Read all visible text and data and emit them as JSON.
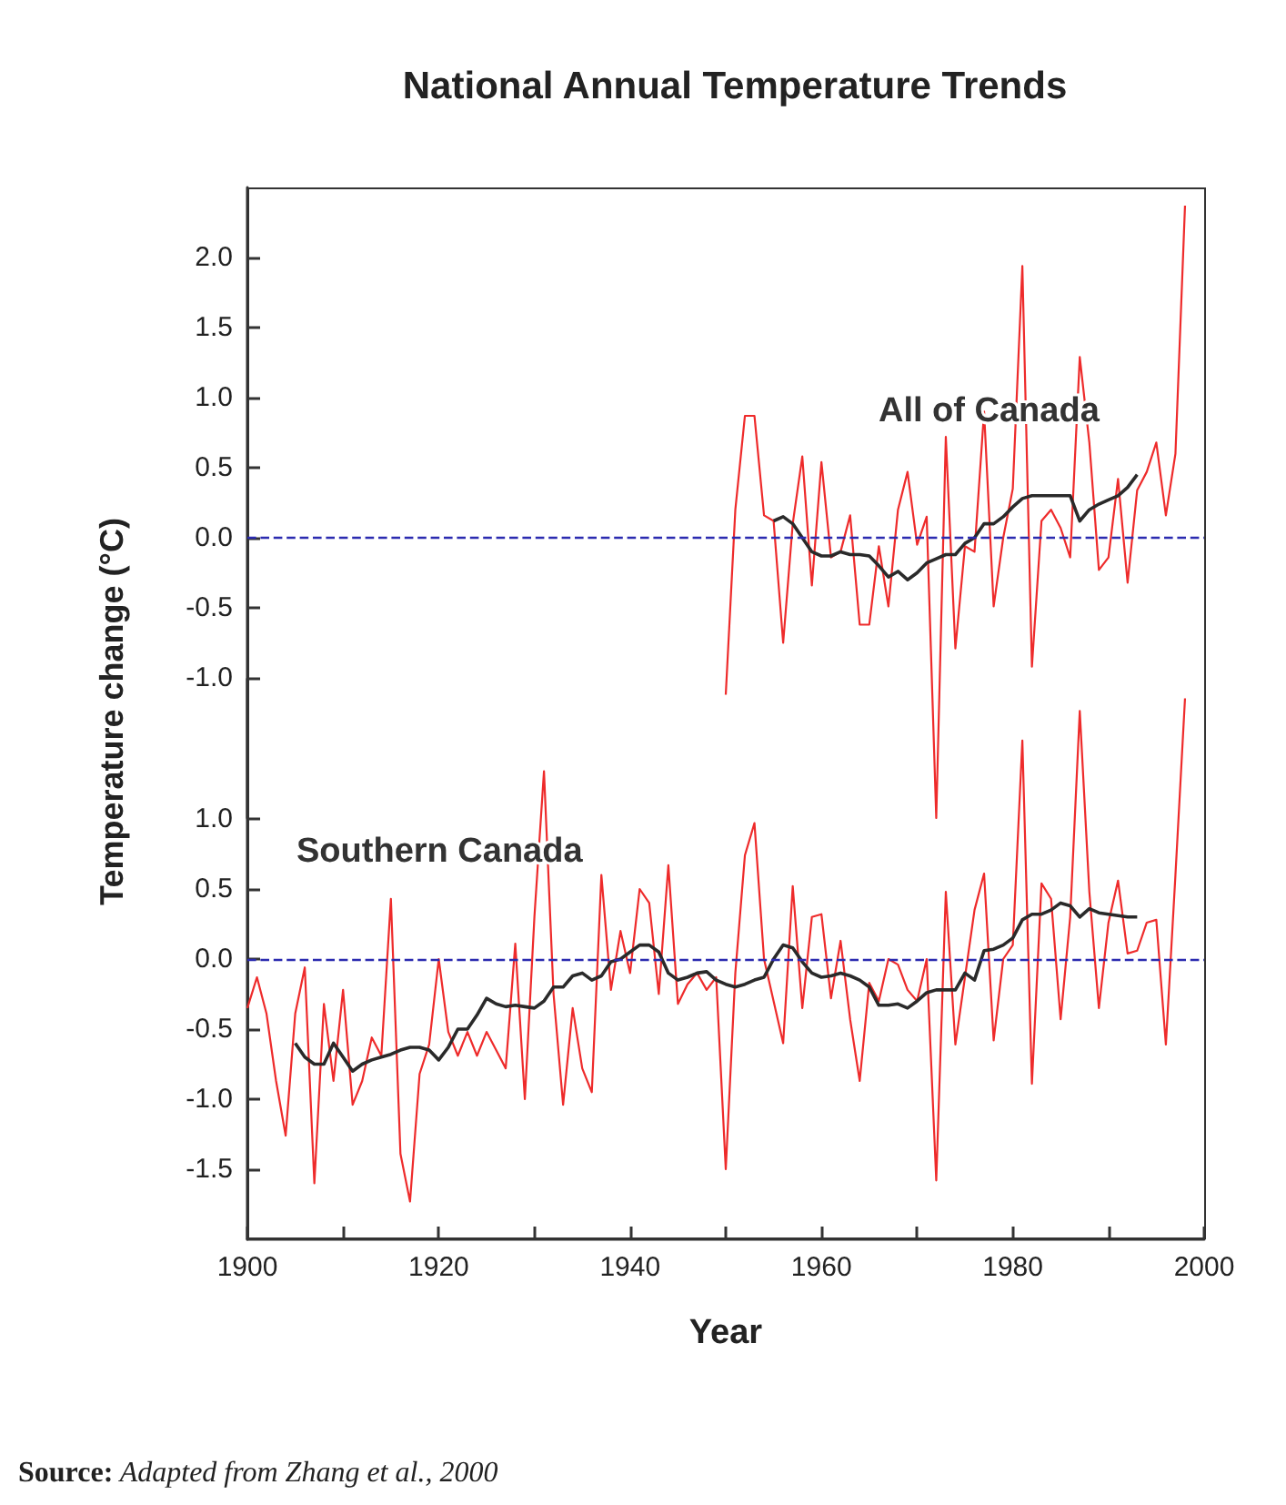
{
  "chart_data": [
    {
      "type": "line",
      "title": "National Annual Temperature Trends",
      "ylabel": "Temperature change (°C)",
      "tick_labels": "y",
      "marker": "none",
      "grid": false,
      "xlim": [
        1900,
        2000
      ],
      "ylim": [
        -2.0,
        2.5
      ],
      "yticks": [
        {
          "value": -1,
          "label": "-1.0"
        },
        {
          "value": -0.5,
          "label": "-0.5"
        },
        {
          "value": 0,
          "label": "0.0"
        },
        {
          "value": 0.5,
          "label": "0.5"
        },
        {
          "value": 1,
          "label": "1.0"
        },
        {
          "value": 1.5,
          "label": "1.5"
        },
        {
          "value": 2,
          "label": "2.0"
        }
      ],
      "ref_lines": [
        {
          "axis": "y",
          "value": 0,
          "color": "#2b2bb0",
          "line_style": "dashed"
        }
      ],
      "annotations": [
        "All of Canada"
      ],
      "series": [
        {
          "color": "#ee2b2b",
          "x": [
            1950,
            1951,
            1952,
            1953,
            1954,
            1955,
            1956,
            1957,
            1958,
            1959,
            1960,
            1961,
            1962,
            1963,
            1964,
            1965,
            1966,
            1967,
            1968,
            1969,
            1970,
            1971,
            1972,
            1973,
            1974,
            1975,
            1976,
            1977,
            1978,
            1979,
            1980,
            1981,
            1982,
            1983,
            1984,
            1985,
            1986,
            1987,
            1988,
            1989,
            1990,
            1991,
            1992,
            1993,
            1994,
            1995,
            1996,
            1997,
            1998
          ],
          "values": [
            -1.12,
            0.2,
            0.87,
            0.87,
            0.16,
            0.12,
            -0.75,
            0.1,
            0.58,
            -0.34,
            0.54,
            -0.14,
            -0.1,
            0.16,
            -0.62,
            -0.62,
            -0.06,
            -0.49,
            0.2,
            0.47,
            -0.05,
            0.15,
            -2.0,
            0.72,
            -0.79,
            -0.06,
            -0.1,
            0.9,
            -0.49,
            0.0,
            0.35,
            1.94,
            -0.92,
            0.12,
            0.2,
            0.07,
            -0.14,
            1.29,
            0.68,
            -0.23,
            -0.14,
            0.42,
            -0.32,
            0.34,
            0.47,
            0.68,
            0.16,
            0.6,
            2.37
          ]
        },
        {
          "color": "#2a2a2a",
          "x": [
            1955,
            1956,
            1957,
            1958,
            1959,
            1960,
            1961,
            1962,
            1963,
            1964,
            1965,
            1966,
            1967,
            1968,
            1969,
            1970,
            1971,
            1972,
            1973,
            1974,
            1975,
            1976,
            1977,
            1978,
            1979,
            1980,
            1981,
            1982,
            1983,
            1984,
            1985,
            1986,
            1987,
            1988,
            1989,
            1990,
            1991,
            1992,
            1993
          ],
          "values": [
            0.12,
            0.15,
            0.1,
            0.0,
            -0.1,
            -0.13,
            -0.13,
            -0.1,
            -0.12,
            -0.12,
            -0.13,
            -0.2,
            -0.28,
            -0.24,
            -0.3,
            -0.25,
            -0.18,
            -0.15,
            -0.12,
            -0.12,
            -0.04,
            0.0,
            0.1,
            0.1,
            0.15,
            0.22,
            0.28,
            0.3,
            0.3,
            0.3,
            0.3,
            0.3,
            0.12,
            0.2,
            0.24,
            0.27,
            0.3,
            0.36,
            0.45
          ]
        }
      ]
    },
    {
      "type": "line",
      "xlabel": "Year",
      "marker": "none",
      "grid": false,
      "xlim": [
        1900,
        2000
      ],
      "ylim": [
        -2.0,
        2.0
      ],
      "xticks": [
        1900,
        {
          "value": 1910,
          "label": null
        },
        1920,
        {
          "value": 1930,
          "label": null
        },
        1940,
        {
          "value": 1950,
          "label": null
        },
        1960,
        {
          "value": 1970,
          "label": null
        },
        1980,
        {
          "value": 1990,
          "label": null
        },
        2000
      ],
      "yticks": [
        {
          "value": -1.5,
          "label": "-1.5"
        },
        {
          "value": -1,
          "label": "-1.0"
        },
        {
          "value": -0.5,
          "label": "-0.5"
        },
        {
          "value": 0,
          "label": "0.0"
        },
        {
          "value": 0.5,
          "label": "0.5"
        },
        {
          "value": 1,
          "label": "1.0"
        }
      ],
      "ref_lines": [
        {
          "axis": "y",
          "value": 0,
          "color": "#2b2bb0",
          "line_style": "dashed"
        }
      ],
      "annotations": [
        "Southern Canada",
        "Source: Adapted from Zhang et al., 2000"
      ],
      "series": [
        {
          "color": "#ee2b2b",
          "x": [
            1900,
            1901,
            1902,
            1903,
            1904,
            1905,
            1906,
            1907,
            1908,
            1909,
            1910,
            1911,
            1912,
            1913,
            1914,
            1915,
            1916,
            1917,
            1918,
            1919,
            1920,
            1921,
            1922,
            1923,
            1924,
            1925,
            1926,
            1927,
            1928,
            1929,
            1930,
            1931,
            1932,
            1933,
            1934,
            1935,
            1936,
            1937,
            1938,
            1939,
            1940,
            1941,
            1942,
            1943,
            1944,
            1945,
            1946,
            1947,
            1948,
            1949,
            1950,
            1951,
            1952,
            1953,
            1954,
            1955,
            1956,
            1957,
            1958,
            1959,
            1960,
            1961,
            1962,
            1963,
            1964,
            1965,
            1966,
            1967,
            1968,
            1969,
            1970,
            1971,
            1972,
            1973,
            1974,
            1975,
            1976,
            1977,
            1978,
            1979,
            1980,
            1981,
            1982,
            1983,
            1984,
            1985,
            1986,
            1987,
            1988,
            1989,
            1990,
            1991,
            1992,
            1993,
            1994,
            1995,
            1996,
            1997,
            1998
          ],
          "values": [
            -0.35,
            -0.13,
            -0.39,
            -0.87,
            -1.26,
            -0.39,
            -0.06,
            -1.6,
            -0.32,
            -0.87,
            -0.22,
            -1.04,
            -0.87,
            -0.56,
            -0.69,
            0.43,
            -1.39,
            -1.73,
            -0.82,
            -0.61,
            0.0,
            -0.52,
            -0.69,
            -0.52,
            -0.69,
            -0.52,
            -0.65,
            -0.78,
            0.11,
            -1.0,
            0.3,
            1.34,
            -0.25,
            -1.04,
            -0.35,
            -0.78,
            -0.95,
            0.6,
            -0.22,
            0.2,
            -0.1,
            0.5,
            0.4,
            -0.25,
            0.67,
            -0.32,
            -0.18,
            -0.1,
            -0.22,
            -0.13,
            -1.5,
            -0.1,
            0.74,
            0.97,
            0.0,
            -0.3,
            -0.6,
            0.52,
            -0.35,
            0.3,
            0.32,
            -0.28,
            0.13,
            -0.43,
            -0.87,
            -0.17,
            -0.3,
            0.0,
            -0.04,
            -0.22,
            -0.3,
            0.0,
            -1.58,
            0.48,
            -0.61,
            -0.13,
            0.35,
            0.61,
            -0.58,
            0.0,
            0.1,
            1.56,
            -0.89,
            0.54,
            0.43,
            -0.43,
            0.3,
            1.77,
            0.48,
            -0.35,
            0.26,
            0.56,
            0.04,
            0.06,
            0.26,
            0.28,
            -0.61,
            0.6,
            1.86
          ]
        },
        {
          "color": "#2a2a2a",
          "x": [
            1905,
            1906,
            1907,
            1908,
            1909,
            1910,
            1911,
            1912,
            1913,
            1914,
            1915,
            1916,
            1917,
            1918,
            1919,
            1920,
            1921,
            1922,
            1923,
            1924,
            1925,
            1926,
            1927,
            1928,
            1929,
            1930,
            1931,
            1932,
            1933,
            1934,
            1935,
            1936,
            1937,
            1938,
            1939,
            1940,
            1941,
            1942,
            1943,
            1944,
            1945,
            1946,
            1947,
            1948,
            1949,
            1950,
            1951,
            1952,
            1953,
            1954,
            1955,
            1956,
            1957,
            1958,
            1959,
            1960,
            1961,
            1962,
            1963,
            1964,
            1965,
            1966,
            1967,
            1968,
            1969,
            1970,
            1971,
            1972,
            1973,
            1974,
            1975,
            1976,
            1977,
            1978,
            1979,
            1980,
            1981,
            1982,
            1983,
            1984,
            1985,
            1986,
            1987,
            1988,
            1989,
            1990,
            1991,
            1992,
            1993
          ],
          "values": [
            -0.6,
            -0.7,
            -0.75,
            -0.75,
            -0.6,
            -0.7,
            -0.8,
            -0.75,
            -0.72,
            -0.7,
            -0.68,
            -0.65,
            -0.63,
            -0.63,
            -0.65,
            -0.72,
            -0.63,
            -0.5,
            -0.5,
            -0.4,
            -0.28,
            -0.32,
            -0.34,
            -0.33,
            -0.34,
            -0.35,
            -0.3,
            -0.2,
            -0.2,
            -0.12,
            -0.1,
            -0.15,
            -0.12,
            -0.02,
            0.0,
            0.05,
            0.1,
            0.1,
            0.05,
            -0.1,
            -0.15,
            -0.13,
            -0.1,
            -0.09,
            -0.15,
            -0.18,
            -0.2,
            -0.18,
            -0.15,
            -0.13,
            0.0,
            0.1,
            0.08,
            -0.02,
            -0.1,
            -0.13,
            -0.12,
            -0.1,
            -0.12,
            -0.15,
            -0.2,
            -0.33,
            -0.33,
            -0.32,
            -0.35,
            -0.3,
            -0.24,
            -0.22,
            -0.22,
            -0.22,
            -0.1,
            -0.15,
            0.06,
            0.07,
            0.1,
            0.15,
            0.28,
            0.32,
            0.32,
            0.35,
            0.4,
            0.38,
            0.3,
            0.36,
            0.33,
            0.32,
            0.31,
            0.3,
            0.3
          ]
        }
      ]
    }
  ]
}
